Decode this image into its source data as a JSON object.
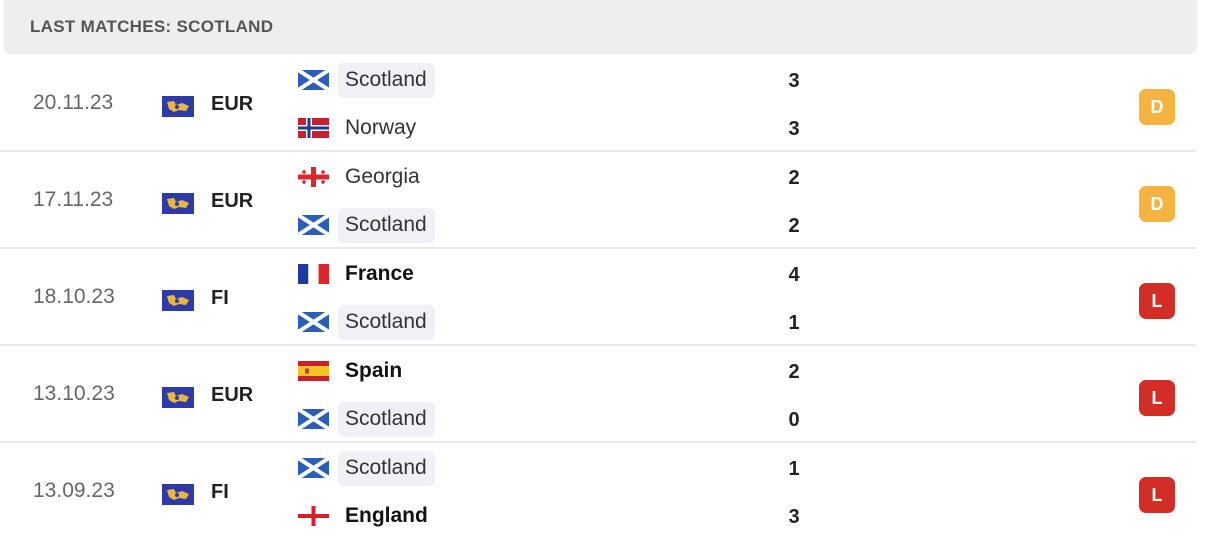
{
  "header": {
    "title": "LAST MATCHES: SCOTLAND"
  },
  "colors": {
    "draw": "#f5b342",
    "loss": "#d22e25",
    "scotland_highlight": "#eff1f6"
  },
  "matches": [
    {
      "date": "20.11.23",
      "competition": "EUR",
      "competition_icon": "euro-qualifiers-icon",
      "home": {
        "name": "Scotland",
        "flag": "scotland-flag-icon",
        "score": "3",
        "highlight": true,
        "winner": false
      },
      "away": {
        "name": "Norway",
        "flag": "norway-flag-icon",
        "score": "3",
        "highlight": false,
        "winner": false
      },
      "result": "D"
    },
    {
      "date": "17.11.23",
      "competition": "EUR",
      "competition_icon": "euro-qualifiers-icon",
      "home": {
        "name": "Georgia",
        "flag": "georgia-flag-icon",
        "score": "2",
        "highlight": false,
        "winner": false
      },
      "away": {
        "name": "Scotland",
        "flag": "scotland-flag-icon",
        "score": "2",
        "highlight": true,
        "winner": false
      },
      "result": "D"
    },
    {
      "date": "18.10.23",
      "competition": "FI",
      "competition_icon": "friendly-international-icon",
      "home": {
        "name": "France",
        "flag": "france-flag-icon",
        "score": "4",
        "highlight": false,
        "winner": true
      },
      "away": {
        "name": "Scotland",
        "flag": "scotland-flag-icon",
        "score": "1",
        "highlight": true,
        "winner": false
      },
      "result": "L"
    },
    {
      "date": "13.10.23",
      "competition": "EUR",
      "competition_icon": "euro-qualifiers-icon",
      "home": {
        "name": "Spain",
        "flag": "spain-flag-icon",
        "score": "2",
        "highlight": false,
        "winner": true
      },
      "away": {
        "name": "Scotland",
        "flag": "scotland-flag-icon",
        "score": "0",
        "highlight": true,
        "winner": false
      },
      "result": "L"
    },
    {
      "date": "13.09.23",
      "competition": "FI",
      "competition_icon": "friendly-international-icon",
      "home": {
        "name": "Scotland",
        "flag": "scotland-flag-icon",
        "score": "1",
        "highlight": true,
        "winner": false
      },
      "away": {
        "name": "England",
        "flag": "england-flag-icon",
        "score": "3",
        "highlight": false,
        "winner": true
      },
      "result": "L"
    }
  ]
}
